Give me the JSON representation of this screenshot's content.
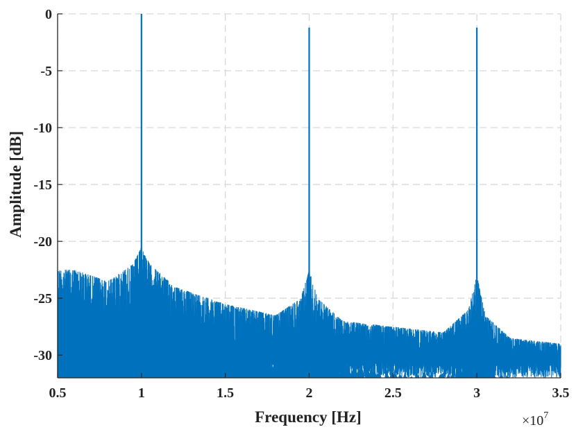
{
  "chart_data": {
    "type": "line",
    "title": "",
    "xlabel": "Frequency [Hz]",
    "ylabel": "Amplitude [dB]",
    "x_exponent_label": "×10",
    "x_exponent_power": "7",
    "xlim": [
      5000000,
      35000000
    ],
    "ylim": [
      -32,
      0
    ],
    "x_ticks": [
      5000000,
      10000000,
      15000000,
      20000000,
      25000000,
      30000000,
      35000000
    ],
    "x_tick_labels": [
      "0.5",
      "1",
      "1.5",
      "2",
      "2.5",
      "3",
      "3.5"
    ],
    "y_ticks": [
      0,
      -5,
      -10,
      -15,
      -20,
      -25,
      -30
    ],
    "y_tick_labels": [
      "0",
      "-5",
      "-10",
      "-15",
      "-20",
      "-25",
      "-30"
    ],
    "grid": true,
    "legend": "none",
    "series_color": "#0072BD",
    "peaks": [
      {
        "x": 10000000,
        "y": 0
      },
      {
        "x": 20000000,
        "y": -1.2
      },
      {
        "x": 30000000,
        "y": -1.2
      }
    ],
    "noise_floor_envelope": {
      "x": [
        5000000,
        6000000,
        8000000,
        9500000,
        10000000,
        10500000,
        12000000,
        15000000,
        18000000,
        19500000,
        20000000,
        20500000,
        22000000,
        25000000,
        28000000,
        29500000,
        30000000,
        30500000,
        32000000,
        35000000
      ],
      "y": [
        -22.5,
        -22.5,
        -23.5,
        -22,
        -20.5,
        -22,
        -24,
        -25.5,
        -26.5,
        -25,
        -22.5,
        -25,
        -27,
        -27.5,
        -28,
        -26,
        -23,
        -26.5,
        -28.5,
        -29
      ]
    },
    "noise_floor_min": -32
  }
}
